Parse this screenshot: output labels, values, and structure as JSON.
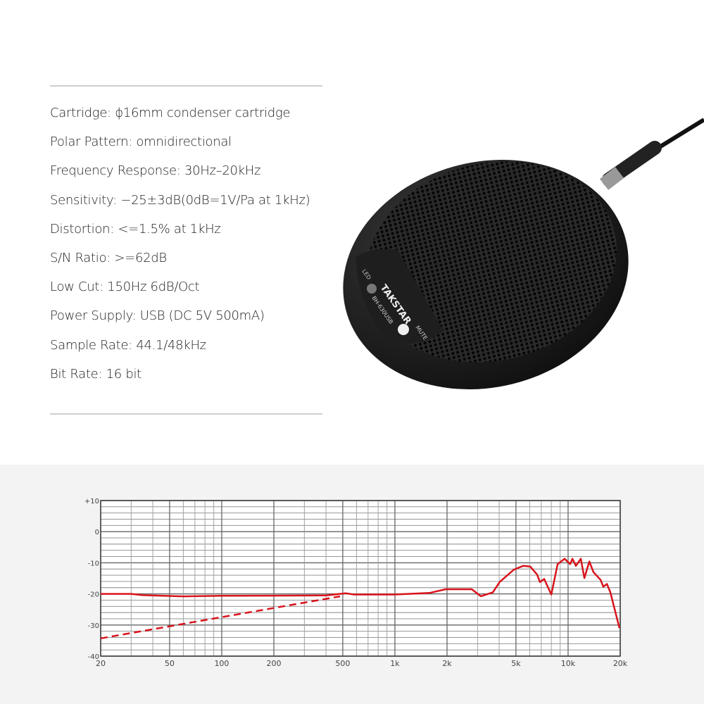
{
  "specs": [
    "Cartridge: ϕ16mm condenser cartridge",
    "Polar Pattern: omnidirectional",
    "Frequency Response: 30Hz–20kHz",
    "Sensitivity: −25±3dB(0dB=1V/Pa at 1kHz)",
    "Distortion: <=1.5% at 1kHz",
    "S/N Ratio: >=62dB",
    "Low Cut: 150Hz 6dB/Oct",
    "Power Supply: USB (DC 5V 500mA)",
    "Sample Rate: 44.1/48kHz",
    "Bit Rate: 16 bit"
  ],
  "product": {
    "brand": "TAKSTAR",
    "model": "BH-630USB",
    "led_label": "LED",
    "mute_label": "MUTE"
  },
  "chart_data": {
    "type": "line",
    "x_scale": "log",
    "xlim": [
      20,
      20000
    ],
    "ylim": [
      -40,
      10
    ],
    "grid": true,
    "x_tick_labels": [
      {
        "value": 20,
        "label": "20"
      },
      {
        "value": 50,
        "label": "50"
      },
      {
        "value": 100,
        "label": "100"
      },
      {
        "value": 200,
        "label": "200"
      },
      {
        "value": 500,
        "label": "500"
      },
      {
        "value": 1000,
        "label": "1k"
      },
      {
        "value": 2000,
        "label": "2k"
      },
      {
        "value": 5000,
        "label": "5k"
      },
      {
        "value": 10000,
        "label": "10k"
      },
      {
        "value": 20000,
        "label": "20k"
      }
    ],
    "y_tick_labels": [
      {
        "value": 10,
        "label": "+10"
      },
      {
        "value": 0,
        "label": "0"
      },
      {
        "value": -10,
        "label": "-10"
      },
      {
        "value": -20,
        "label": "-20"
      },
      {
        "value": -30,
        "label": "-30"
      },
      {
        "value": -40,
        "label": "-40"
      }
    ],
    "series": [
      {
        "style": "solid",
        "color": "#d9141c",
        "points": [
          [
            20,
            -20
          ],
          [
            30,
            -20
          ],
          [
            35,
            -20.4
          ],
          [
            60,
            -20.8
          ],
          [
            100,
            -20.6
          ],
          [
            400,
            -20.5
          ],
          [
            520,
            -19.8
          ],
          [
            580,
            -20.2
          ],
          [
            991,
            -20.2
          ],
          [
            1581,
            -19.7
          ],
          [
            1964,
            -18.5
          ],
          [
            2777,
            -18.5
          ],
          [
            3134,
            -20.75
          ],
          [
            3674,
            -19.5
          ],
          [
            4036,
            -16.1
          ],
          [
            4868,
            -12.2
          ],
          [
            5500,
            -11
          ],
          [
            6040,
            -11.2
          ],
          [
            6630,
            -13.8
          ],
          [
            6880,
            -16.2
          ],
          [
            7280,
            -15.2
          ],
          [
            8000,
            -20.2
          ],
          [
            8700,
            -10.4
          ],
          [
            9550,
            -8.7
          ],
          [
            10280,
            -10.4
          ],
          [
            10590,
            -8.7
          ],
          [
            11100,
            -11
          ],
          [
            11840,
            -8.7
          ],
          [
            12420,
            -14.9
          ],
          [
            13260,
            -9.6
          ],
          [
            14020,
            -13
          ],
          [
            15400,
            -15.5
          ],
          [
            15980,
            -17.7
          ],
          [
            16750,
            -16.8
          ],
          [
            17540,
            -19.5
          ],
          [
            19800,
            -31
          ]
        ]
      },
      {
        "style": "dashed",
        "color": "#d9141c",
        "points": [
          [
            20,
            -34.3
          ],
          [
            482,
            -20.8
          ]
        ]
      }
    ]
  }
}
